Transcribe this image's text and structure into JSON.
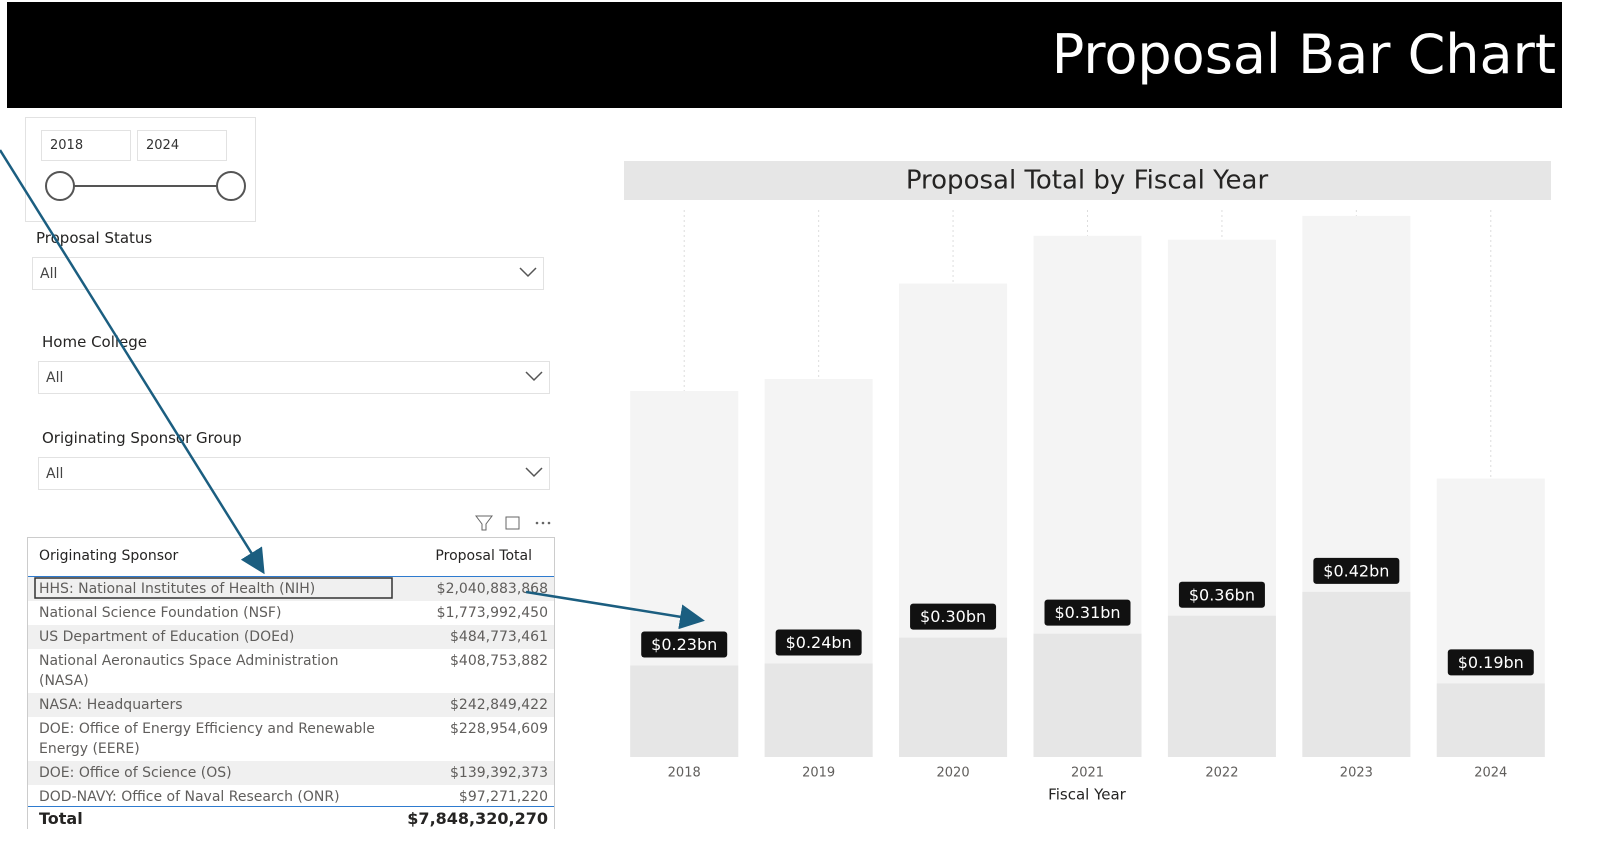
{
  "header": {
    "title": "Proposal Bar Chart"
  },
  "slicer": {
    "from": "2018",
    "to": "2024"
  },
  "filters": [
    {
      "label": "Proposal Status",
      "value": "All"
    },
    {
      "label": "Home College",
      "value": "All"
    },
    {
      "label": "Originating Sponsor Group",
      "value": "All"
    }
  ],
  "table": {
    "columns": [
      "Originating Sponsor",
      "Proposal Total"
    ],
    "rows": [
      [
        "HHS: National Institutes of Health (NIH)",
        "$2,040,883,868"
      ],
      [
        "National Science Foundation (NSF)",
        "$1,773,992,450"
      ],
      [
        "US Department of Education (DOEd)",
        "$484,773,461"
      ],
      [
        "National Aeronautics Space Administration (NASA)",
        "$408,753,882"
      ],
      [
        "NASA: Headquarters",
        "$242,849,422"
      ],
      [
        "DOE: Office of Energy Efficiency and Renewable Energy (EERE)",
        "$228,954,609"
      ],
      [
        "DOE: Office of Science (OS)",
        "$139,392,373"
      ],
      [
        "DOD-NAVY: Office of Naval Research (ONR)",
        "$97,271,220"
      ]
    ],
    "total": [
      "Total",
      "$7,848,320,270"
    ]
  },
  "chart_data": {
    "type": "bar",
    "title": "Proposal Total by Fiscal Year",
    "x_label": "Fiscal Year",
    "categories": [
      "2018",
      "2019",
      "2020",
      "2021",
      "2022",
      "2023",
      "2024"
    ],
    "ylim": [
      0,
      1.4
    ],
    "series": [
      {
        "color": "#f4f4f4",
        "values": [
          0.92,
          0.95,
          1.19,
          1.31,
          1.3,
          1.36,
          0.7
        ]
      },
      {
        "color": "#e6e6e6",
        "values": [
          0.23,
          0.235,
          0.3,
          0.31,
          0.355,
          0.415,
          0.185
        ],
        "value_labels": [
          "$0.23bn",
          "$0.24bn",
          "$0.30bn",
          "$0.31bn",
          "$0.36bn",
          "$0.42bn",
          "$0.19bn"
        ]
      }
    ]
  }
}
